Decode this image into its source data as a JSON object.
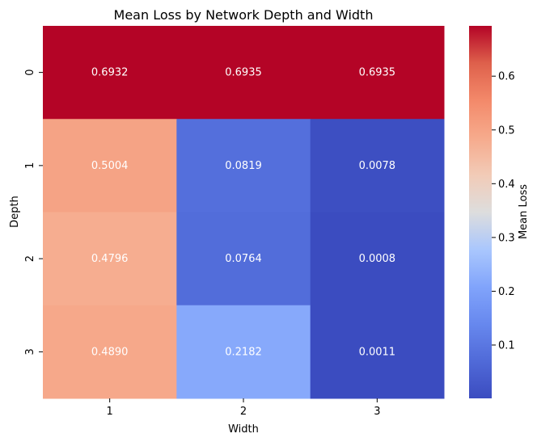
{
  "chart_data": {
    "type": "heatmap",
    "title": "Mean Loss by Network Depth and Width",
    "xlabel": "Width",
    "ylabel": "Depth",
    "x_categories": [
      "1",
      "2",
      "3"
    ],
    "y_categories": [
      "0",
      "1",
      "2",
      "3"
    ],
    "values": [
      [
        0.6932,
        0.6935,
        0.6935
      ],
      [
        0.5004,
        0.0819,
        0.0078
      ],
      [
        0.4796,
        0.0764,
        0.0008
      ],
      [
        0.489,
        0.2182,
        0.0011
      ]
    ],
    "annotations": [
      [
        "0.6932",
        "0.6935",
        "0.6935"
      ],
      [
        "0.5004",
        "0.0819",
        "0.0078"
      ],
      [
        "0.4796",
        "0.0764",
        "0.0008"
      ],
      [
        "0.4890",
        "0.2182",
        "0.0011"
      ]
    ],
    "colormap": "coolwarm",
    "vmin": 0.0008,
    "vmax": 0.6935,
    "colorbar": {
      "label": "Mean Loss",
      "ticks": [
        0.1,
        0.2,
        0.3,
        0.4,
        0.5,
        0.6
      ],
      "tick_labels": [
        "0.1",
        "0.2",
        "0.3",
        "0.4",
        "0.5",
        "0.6"
      ]
    },
    "grid": false
  }
}
